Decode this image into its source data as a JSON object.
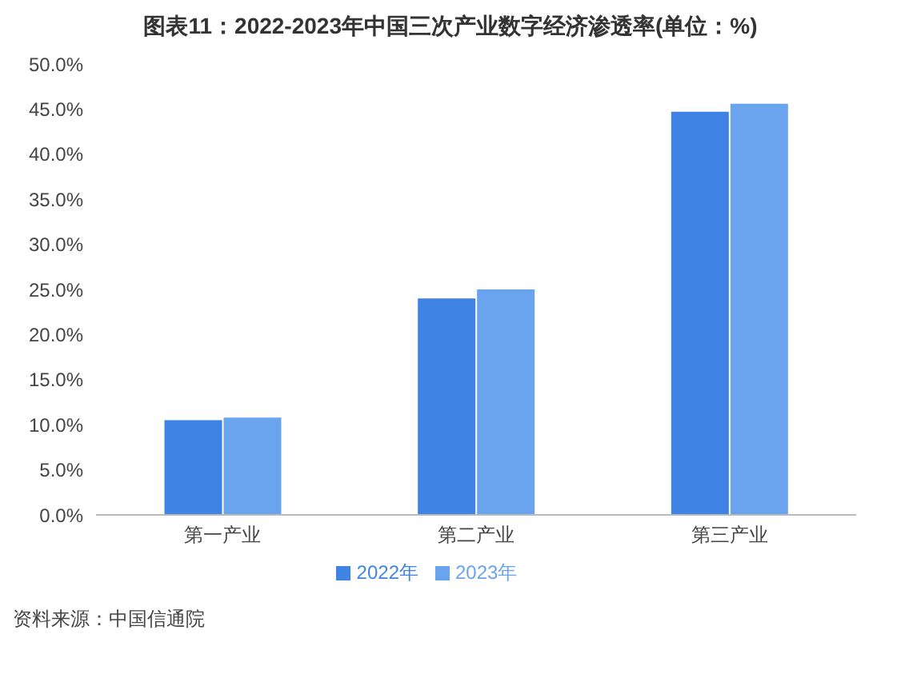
{
  "chart_data": {
    "type": "bar",
    "title": "图表11：2022-2023年中国三次产业数字经济渗透率(单位：%)",
    "categories": [
      "第一产业",
      "第二产业",
      "第三产业"
    ],
    "series": [
      {
        "name": "2022年",
        "color": "#3f84e5",
        "values": [
          10.5,
          24.0,
          44.7
        ]
      },
      {
        "name": "2023年",
        "color": "#6aa3ee",
        "values": [
          10.8,
          25.0,
          45.6
        ]
      }
    ],
    "ylim": [
      0,
      50
    ],
    "yticks": [
      {
        "value": 0,
        "label": "0.0%"
      },
      {
        "value": 5,
        "label": "5.0%"
      },
      {
        "value": 10,
        "label": "10.0%"
      },
      {
        "value": 15,
        "label": "15.0%"
      },
      {
        "value": 20,
        "label": "20.0%"
      },
      {
        "value": 25,
        "label": "25.0%"
      },
      {
        "value": 30,
        "label": "30.0%"
      },
      {
        "value": 35,
        "label": "35.0%"
      },
      {
        "value": 40,
        "label": "40.0%"
      },
      {
        "value": 45,
        "label": "45.0%"
      },
      {
        "value": 50,
        "label": "50.0%"
      }
    ],
    "legend": "bottom",
    "annotations": [
      "资料来源：中国信通院"
    ]
  }
}
